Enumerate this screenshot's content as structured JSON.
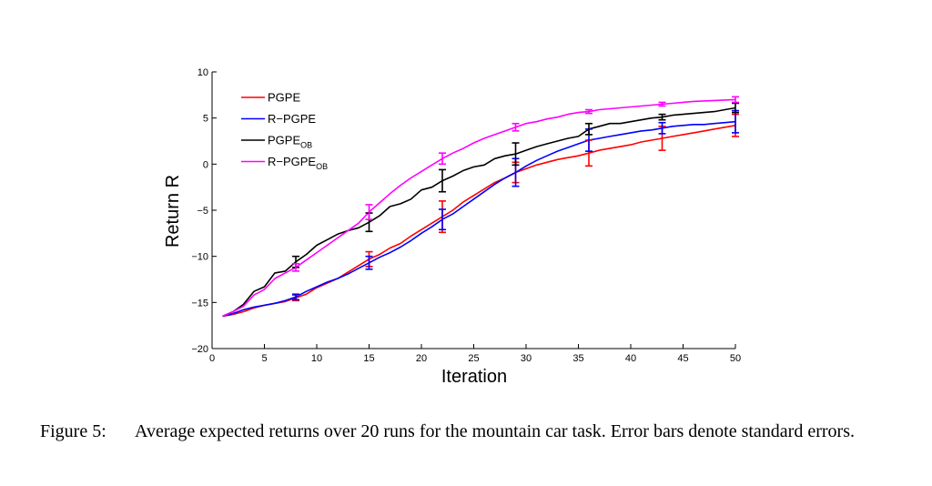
{
  "chart_data": {
    "type": "line",
    "title": "",
    "xlabel": "Iteration",
    "ylabel": "Return R",
    "xlim": [
      0,
      50
    ],
    "ylim": [
      -20,
      10
    ],
    "xticks": [
      0,
      5,
      10,
      15,
      20,
      25,
      30,
      35,
      40,
      45,
      50
    ],
    "yticks": [
      -20,
      -15,
      -10,
      -5,
      0,
      5,
      10
    ],
    "legend_position": "top-left",
    "series": [
      {
        "name": "PGPE",
        "label_main": "PGPE",
        "label_sub": "",
        "color": "#ff0000",
        "x": [
          1,
          2,
          3,
          4,
          5,
          6,
          7,
          8,
          9,
          10,
          11,
          12,
          13,
          14,
          15,
          16,
          17,
          18,
          19,
          20,
          21,
          22,
          23,
          24,
          25,
          26,
          27,
          28,
          29,
          30,
          31,
          32,
          33,
          34,
          35,
          36,
          37,
          38,
          39,
          40,
          41,
          42,
          43,
          44,
          45,
          46,
          47,
          48,
          49,
          50
        ],
        "y": [
          -16.5,
          -16.3,
          -16,
          -15.6,
          -15.3,
          -15.1,
          -14.9,
          -14.5,
          -14.1,
          -13.4,
          -12.9,
          -12.4,
          -11.7,
          -11,
          -10.3,
          -9.8,
          -9.1,
          -8.6,
          -7.8,
          -7.1,
          -6.4,
          -5.7,
          -5,
          -4.1,
          -3.4,
          -2.7,
          -2,
          -1.5,
          -0.9,
          -0.5,
          -0.1,
          0.2,
          0.5,
          0.7,
          0.9,
          1.2,
          1.5,
          1.7,
          1.9,
          2.1,
          2.4,
          2.6,
          2.8,
          3,
          3.2,
          3.4,
          3.6,
          3.8,
          4,
          4.2
        ],
        "errorbars": [
          {
            "x": 8,
            "y": -14.5,
            "err": 0.3
          },
          {
            "x": 15,
            "y": -10.3,
            "err": 0.8
          },
          {
            "x": 22,
            "y": -5.7,
            "err": 1.7
          },
          {
            "x": 29,
            "y": -0.9,
            "err": 1.1
          },
          {
            "x": 36,
            "y": 1.2,
            "err": 1.4
          },
          {
            "x": 43,
            "y": 2.8,
            "err": 1.3
          },
          {
            "x": 50,
            "y": 4.2,
            "err": 1.2
          }
        ]
      },
      {
        "name": "R-PGPE",
        "label_main": "R−PGPE",
        "label_sub": "",
        "color": "#0000ff",
        "x": [
          1,
          2,
          3,
          4,
          5,
          6,
          7,
          8,
          9,
          10,
          11,
          12,
          13,
          14,
          15,
          16,
          17,
          18,
          19,
          20,
          21,
          22,
          23,
          24,
          25,
          26,
          27,
          28,
          29,
          30,
          31,
          32,
          33,
          34,
          35,
          36,
          37,
          38,
          39,
          40,
          41,
          42,
          43,
          44,
          45,
          46,
          47,
          48,
          49,
          50
        ],
        "y": [
          -16.5,
          -16.2,
          -15.8,
          -15.5,
          -15.3,
          -15.1,
          -14.8,
          -14.4,
          -13.8,
          -13.3,
          -12.8,
          -12.4,
          -11.9,
          -11.3,
          -10.7,
          -10.1,
          -9.6,
          -9,
          -8.3,
          -7.5,
          -6.8,
          -6,
          -5.4,
          -4.6,
          -3.8,
          -3,
          -2.2,
          -1.5,
          -0.9,
          -0.2,
          0.4,
          0.9,
          1.4,
          1.8,
          2.2,
          2.6,
          2.8,
          3,
          3.2,
          3.4,
          3.6,
          3.7,
          3.9,
          4.1,
          4.2,
          4.3,
          4.3,
          4.4,
          4.5,
          4.6
        ],
        "errorbars": [
          {
            "x": 8,
            "y": -14.4,
            "err": 0.3
          },
          {
            "x": 15,
            "y": -10.7,
            "err": 0.7
          },
          {
            "x": 22,
            "y": -6,
            "err": 1.1
          },
          {
            "x": 29,
            "y": -0.9,
            "err": 1.5
          },
          {
            "x": 36,
            "y": 2.6,
            "err": 1.2
          },
          {
            "x": 43,
            "y": 3.9,
            "err": 0.6
          },
          {
            "x": 50,
            "y": 4.6,
            "err": 1.2
          }
        ]
      },
      {
        "name": "PGPE_OB",
        "label_main": "PGPE",
        "label_sub": "OB",
        "color": "#000000",
        "x": [
          1,
          2,
          3,
          4,
          5,
          6,
          7,
          8,
          9,
          10,
          11,
          12,
          13,
          14,
          15,
          16,
          17,
          18,
          19,
          20,
          21,
          22,
          23,
          24,
          25,
          26,
          27,
          28,
          29,
          30,
          31,
          32,
          33,
          34,
          35,
          36,
          37,
          38,
          39,
          40,
          41,
          42,
          43,
          44,
          45,
          46,
          47,
          48,
          49,
          50
        ],
        "y": [
          -16.5,
          -16,
          -15.2,
          -13.8,
          -13.3,
          -11.8,
          -11.6,
          -10.6,
          -9.8,
          -8.8,
          -8.2,
          -7.6,
          -7.2,
          -6.9,
          -6.3,
          -5.6,
          -4.6,
          -4.3,
          -3.8,
          -2.8,
          -2.5,
          -1.8,
          -1.3,
          -0.7,
          -0.3,
          -0.1,
          0.6,
          0.9,
          1.1,
          1.5,
          1.9,
          2.2,
          2.5,
          2.8,
          3,
          3.8,
          4.1,
          4.4,
          4.4,
          4.6,
          4.8,
          5,
          5.1,
          5.3,
          5.4,
          5.5,
          5.6,
          5.7,
          5.9,
          6.1
        ],
        "errorbars": [
          {
            "x": 8,
            "y": -10.6,
            "err": 0.6
          },
          {
            "x": 15,
            "y": -6.3,
            "err": 1
          },
          {
            "x": 22,
            "y": -1.8,
            "err": 1.2
          },
          {
            "x": 29,
            "y": 1.1,
            "err": 1.2
          },
          {
            "x": 36,
            "y": 3.8,
            "err": 0.6
          },
          {
            "x": 43,
            "y": 5.1,
            "err": 0.3
          },
          {
            "x": 50,
            "y": 6.1,
            "err": 0.5
          }
        ]
      },
      {
        "name": "R-PGPE_OB",
        "label_main": "R−PGPE",
        "label_sub": "OB",
        "color": "#ff00ff",
        "x": [
          1,
          2,
          3,
          4,
          5,
          6,
          7,
          8,
          9,
          10,
          11,
          12,
          13,
          14,
          15,
          16,
          17,
          18,
          19,
          20,
          21,
          22,
          23,
          24,
          25,
          26,
          27,
          28,
          29,
          30,
          31,
          32,
          33,
          34,
          35,
          36,
          37,
          38,
          39,
          40,
          41,
          42,
          43,
          44,
          45,
          46,
          47,
          48,
          49,
          50
        ],
        "y": [
          -16.5,
          -16,
          -15.4,
          -14.2,
          -13.6,
          -12.4,
          -11.8,
          -11.2,
          -10.4,
          -9.6,
          -8.8,
          -8,
          -7.2,
          -6.4,
          -5.2,
          -4.2,
          -3.2,
          -2.3,
          -1.5,
          -0.8,
          -0.1,
          0.6,
          1.2,
          1.7,
          2.3,
          2.8,
          3.2,
          3.6,
          4,
          4.4,
          4.6,
          4.9,
          5.1,
          5.4,
          5.6,
          5.7,
          5.9,
          6,
          6.1,
          6.2,
          6.3,
          6.4,
          6.5,
          6.6,
          6.7,
          6.8,
          6.85,
          6.9,
          6.95,
          7
        ],
        "errorbars": [
          {
            "x": 8,
            "y": -11.2,
            "err": 0.4
          },
          {
            "x": 15,
            "y": -5.2,
            "err": 0.8
          },
          {
            "x": 22,
            "y": 0.6,
            "err": 0.6
          },
          {
            "x": 29,
            "y": 4,
            "err": 0.4
          },
          {
            "x": 36,
            "y": 5.7,
            "err": 0.2
          },
          {
            "x": 43,
            "y": 6.5,
            "err": 0.2
          },
          {
            "x": 50,
            "y": 7,
            "err": 0.3
          }
        ]
      }
    ]
  },
  "caption": {
    "number": "Figure 5:",
    "text": "Average expected returns over 20 runs for the mountain car task.  Error bars denote standard errors."
  }
}
